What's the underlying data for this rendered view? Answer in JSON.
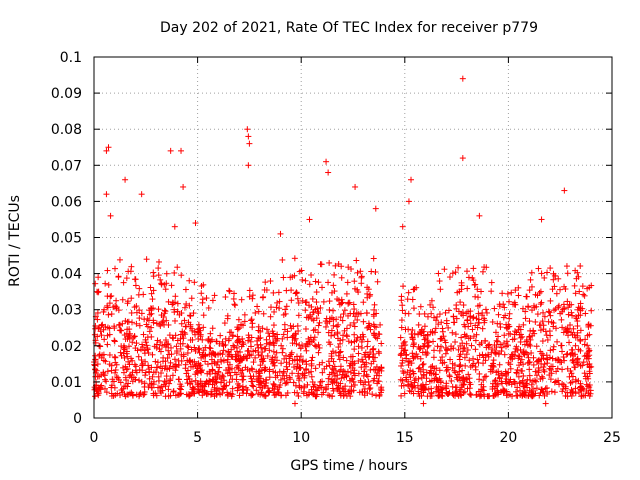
{
  "chart_data": {
    "type": "scatter",
    "title": "Day 202 of 2021, Rate Of TEC Index for receiver p779",
    "xlabel": "GPS time / hours",
    "ylabel": "ROTI / TECUs",
    "xlim": [
      0,
      25
    ],
    "ylim": [
      0,
      0.1
    ],
    "xticks": [
      0,
      5,
      10,
      15,
      20,
      25
    ],
    "yticks": [
      0,
      0.01,
      0.02,
      0.03,
      0.04,
      0.05,
      0.06,
      0.07,
      0.08,
      0.09,
      0.1
    ],
    "grid": true,
    "marker": "+",
    "color": "#ff0000",
    "data_gap_hours": [
      13.9,
      14.8
    ],
    "series": [
      {
        "name": "ROTI",
        "notable_points": [
          {
            "x": 17.8,
            "y": 0.094
          },
          {
            "x": 7.4,
            "y": 0.08
          },
          {
            "x": 7.45,
            "y": 0.078
          },
          {
            "x": 7.5,
            "y": 0.076
          },
          {
            "x": 0.7,
            "y": 0.075
          },
          {
            "x": 0.6,
            "y": 0.074
          },
          {
            "x": 3.7,
            "y": 0.074
          },
          {
            "x": 4.2,
            "y": 0.074
          },
          {
            "x": 17.8,
            "y": 0.072
          },
          {
            "x": 11.2,
            "y": 0.071
          },
          {
            "x": 7.45,
            "y": 0.07
          },
          {
            "x": 11.3,
            "y": 0.068
          },
          {
            "x": 1.5,
            "y": 0.066
          },
          {
            "x": 15.3,
            "y": 0.066
          },
          {
            "x": 4.3,
            "y": 0.064
          },
          {
            "x": 22.7,
            "y": 0.063
          },
          {
            "x": 12.6,
            "y": 0.064
          },
          {
            "x": 0.6,
            "y": 0.062
          },
          {
            "x": 2.3,
            "y": 0.062
          },
          {
            "x": 15.2,
            "y": 0.06
          },
          {
            "x": 13.6,
            "y": 0.058
          },
          {
            "x": 18.6,
            "y": 0.056
          },
          {
            "x": 0.8,
            "y": 0.056
          },
          {
            "x": 21.6,
            "y": 0.055
          },
          {
            "x": 4.9,
            "y": 0.054
          },
          {
            "x": 14.9,
            "y": 0.053
          },
          {
            "x": 3.9,
            "y": 0.053
          },
          {
            "x": 9.0,
            "y": 0.051
          },
          {
            "x": 10.4,
            "y": 0.055
          },
          {
            "x": 0.2,
            "y": 0.039
          },
          {
            "x": 9.7,
            "y": 0.004
          },
          {
            "x": 15.9,
            "y": 0.004
          },
          {
            "x": 21.8,
            "y": 0.004
          }
        ]
      }
    ]
  }
}
